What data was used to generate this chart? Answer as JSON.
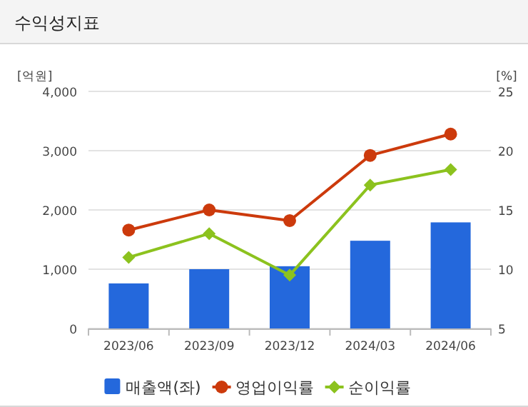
{
  "chart_data": {
    "type": "bar",
    "title": "수익성지표",
    "ylabel": "[억원]",
    "y2label": "[%]",
    "categories": [
      "2023/06",
      "2023/09",
      "2023/12",
      "2024/03",
      "2024/06"
    ],
    "series": [
      {
        "name": "매출액(좌)",
        "color": "#2468dc",
        "values": [
          760,
          1000,
          1050,
          1480,
          1790
        ]
      },
      {
        "name": "영업이익률",
        "type": "line",
        "axis": "y2",
        "marker": "circle",
        "color": "#cc3a0c",
        "values": [
          13.3,
          15.0,
          14.1,
          19.6,
          21.4
        ]
      },
      {
        "name": "순이익률",
        "type": "line",
        "axis": "y2",
        "marker": "diamond",
        "color": "#8cc21e",
        "values": [
          11.0,
          13.0,
          9.5,
          17.1,
          18.4
        ]
      }
    ],
    "ylim": [
      0,
      4000
    ],
    "yticks": [
      {
        "value": 0,
        "label": "0"
      },
      {
        "value": 1000,
        "label": "1,000"
      },
      {
        "value": 2000,
        "label": "2,000"
      },
      {
        "value": 3000,
        "label": "3,000"
      },
      {
        "value": 4000,
        "label": "4,000"
      }
    ],
    "y2lim": [
      5,
      25
    ],
    "y2ticks": [
      5,
      10,
      15,
      20,
      25
    ],
    "grid": "y",
    "legend": "bottom"
  }
}
